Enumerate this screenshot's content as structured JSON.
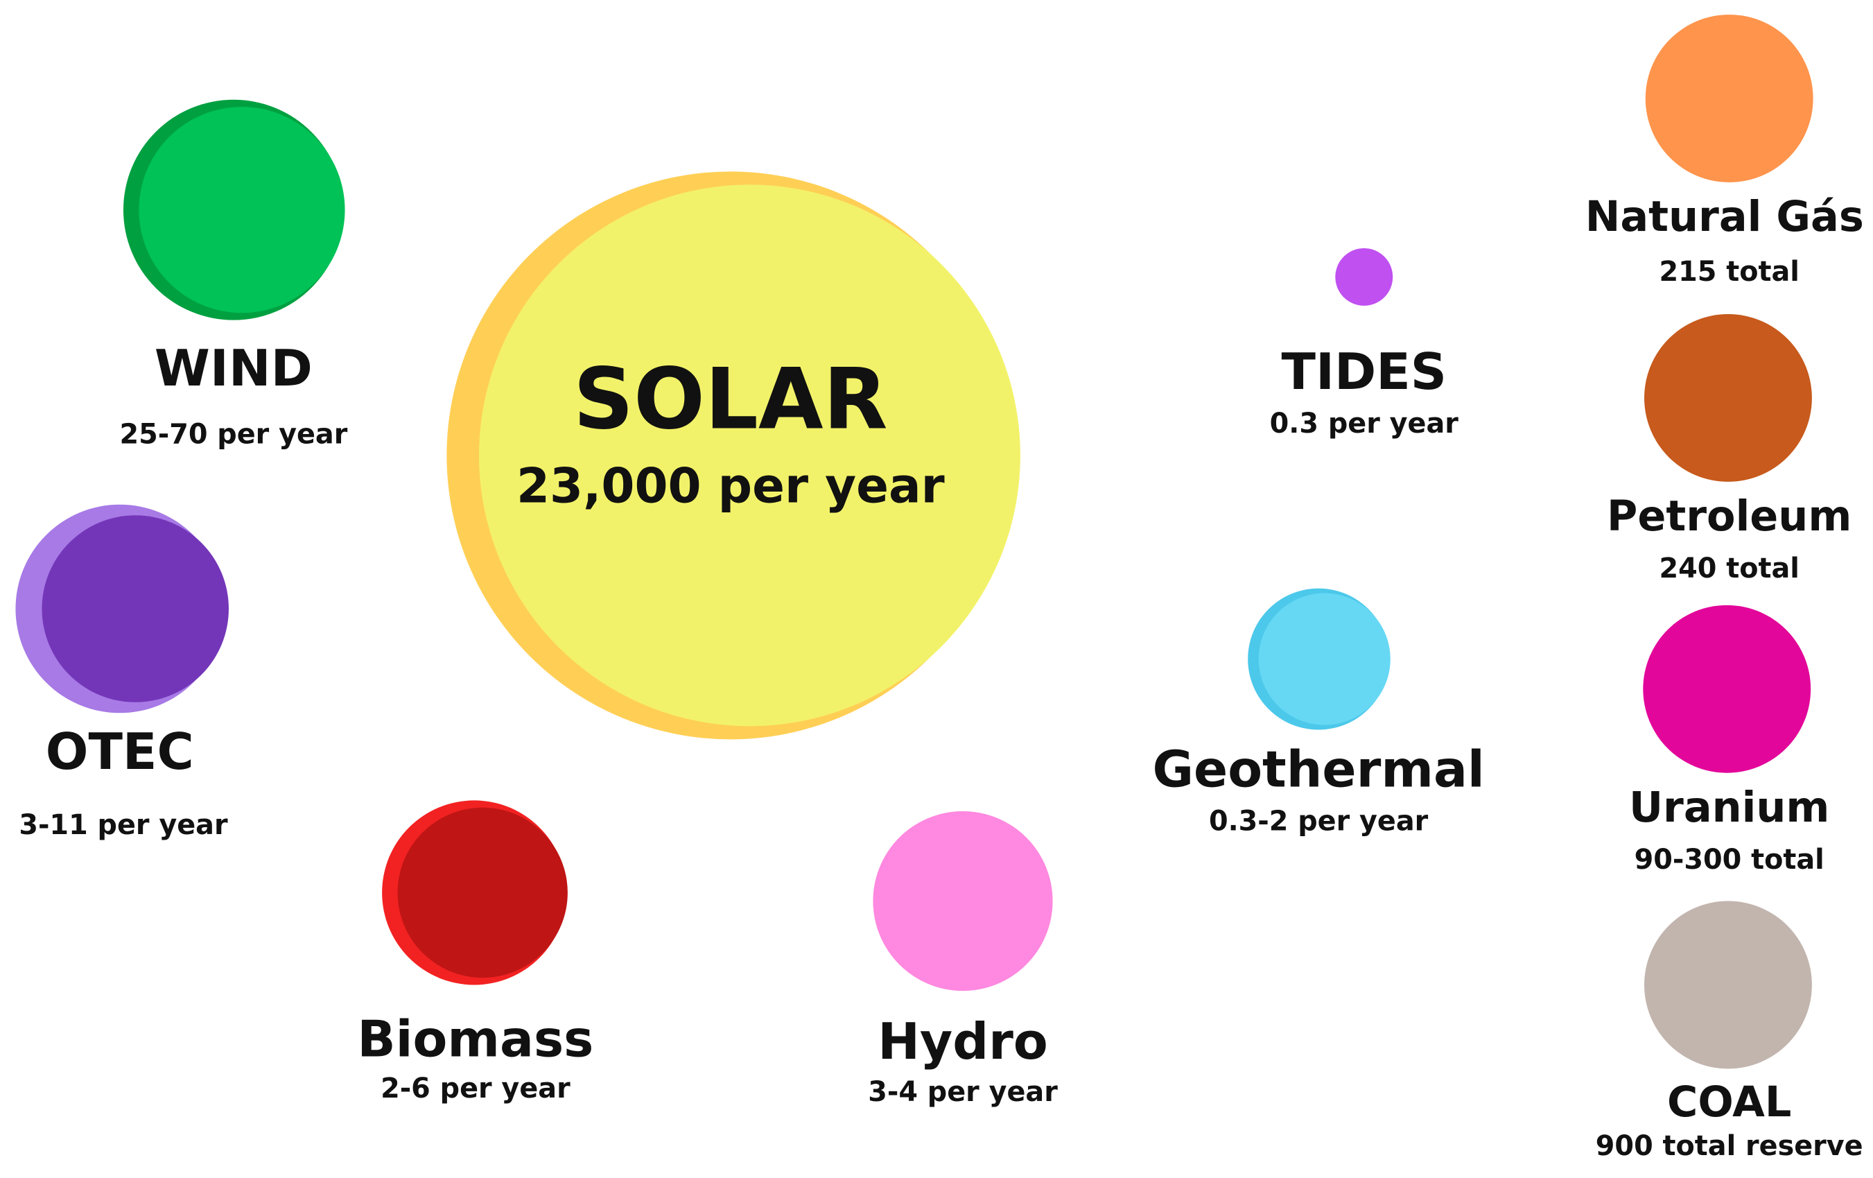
{
  "nodes": [
    {
      "label": "SOLAR",
      "amount": "23,000 per year"
    },
    {
      "label": "WIND",
      "amount": "25-70 per year"
    },
    {
      "label": "OTEC",
      "amount": "3-11 per year"
    },
    {
      "label": "Biomass",
      "amount": "2-6 per year"
    },
    {
      "label": "Hydro",
      "amount": "3-4 per year"
    },
    {
      "label": "TIDES",
      "amount": "0.3 per year"
    },
    {
      "label": "Geothermal",
      "amount": "0.3-2 per year"
    },
    {
      "label": "Natural Gás",
      "amount": "215 total"
    },
    {
      "label": "Petroleum",
      "amount": "240 total"
    },
    {
      "label": "Uranium",
      "amount": "90-300 total"
    },
    {
      "label": "COAL",
      "amount": "900 total reserve"
    }
  ]
}
